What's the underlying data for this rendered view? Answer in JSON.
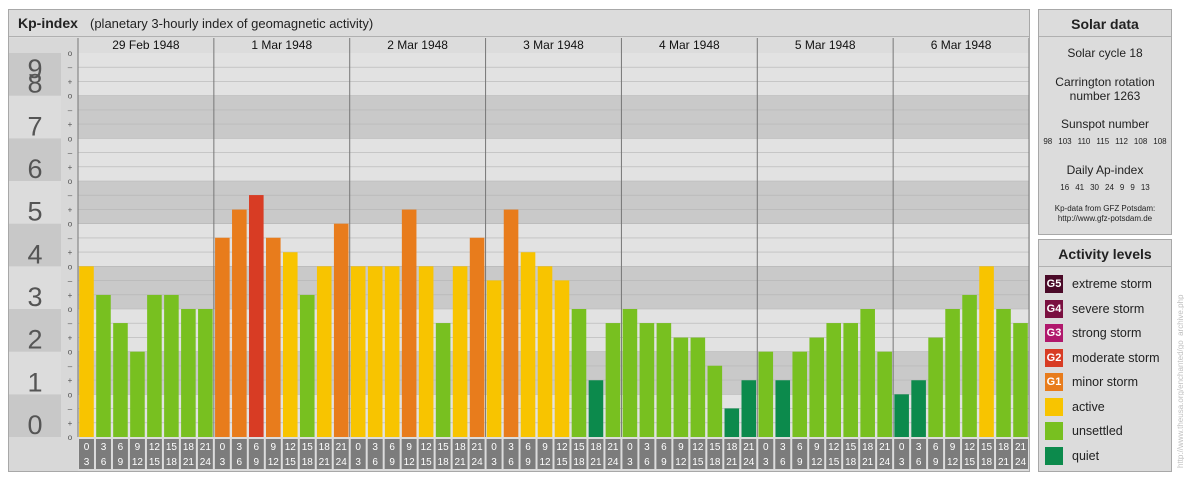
{
  "header": {
    "title": "Kp-index",
    "subtitle": "(planetary 3-hourly index of geomagnetic activity)"
  },
  "chart_data": {
    "type": "bar",
    "ylim": [
      0,
      9
    ],
    "y_ticks": [
      "0",
      "1",
      "2",
      "3",
      "4",
      "5",
      "6",
      "7",
      "8",
      "9"
    ],
    "y_subticks": [
      "o",
      "+",
      "–",
      "o",
      "+",
      "–",
      "o",
      "+",
      "–",
      "o",
      "+",
      "–",
      "o",
      "+",
      "–",
      "o",
      "+",
      "–",
      "o",
      "+",
      "–",
      "o",
      "+",
      "–",
      "o",
      "+",
      "–",
      "o"
    ],
    "days": [
      "29 Feb 1948",
      "1 Mar 1948",
      "2 Mar 1948",
      "3 Mar 1948",
      "4 Mar 1948",
      "5 Mar 1948",
      "6 Mar 1948"
    ],
    "time_intervals": [
      [
        "0",
        "3"
      ],
      [
        "3",
        "6"
      ],
      [
        "6",
        "9"
      ],
      [
        "9",
        "12"
      ],
      [
        "12",
        "15"
      ],
      [
        "15",
        "18"
      ],
      [
        "18",
        "21"
      ],
      [
        "21",
        "24"
      ]
    ],
    "values": [
      [
        4.0,
        3.33,
        2.67,
        2.0,
        3.33,
        3.33,
        3.0,
        3.0
      ],
      [
        4.67,
        5.33,
        5.67,
        4.67,
        4.33,
        3.33,
        4.0,
        5.0
      ],
      [
        4.0,
        4.0,
        4.0,
        5.33,
        4.0,
        2.67,
        4.0,
        4.67
      ],
      [
        3.67,
        5.33,
        4.33,
        4.0,
        3.67,
        3.0,
        1.33,
        2.67
      ],
      [
        3.0,
        2.67,
        2.67,
        2.33,
        2.33,
        1.67,
        0.67,
        1.33
      ],
      [
        2.0,
        1.33,
        2.0,
        2.33,
        2.67,
        2.67,
        3.0,
        2.0
      ],
      [
        1.0,
        1.33,
        2.33,
        3.0,
        3.33,
        4.0,
        3.0,
        2.67
      ]
    ],
    "colors": {
      "quiet": "#0c8a4c",
      "unsettled": "#78c020",
      "active": "#f8c400",
      "minor_storm": "#e87c1c",
      "moderate_storm": "#d83c24"
    }
  },
  "solar_data": {
    "title": "Solar data",
    "solar_cycle": "Solar cycle 18",
    "carrington_line1": "Carrington rotation",
    "carrington_line2": "number 1263",
    "sunspot_label": "Sunspot number",
    "sunspot_values": [
      "98",
      "103",
      "110",
      "115",
      "112",
      "108",
      "108"
    ],
    "ap_label": "Daily Ap-index",
    "ap_values": [
      "16",
      "41",
      "30",
      "24",
      "9",
      "9",
      "13"
    ],
    "source_line1": "Kp-data from GFZ Potsdam:",
    "source_line2": "http://www.gfz-potsdam.de"
  },
  "activity_levels": {
    "title": "Activity levels",
    "items": [
      {
        "code": "G5",
        "label": "extreme storm",
        "color": "#4a0a28"
      },
      {
        "code": "G4",
        "label": "severe storm",
        "color": "#7a1040"
      },
      {
        "code": "G3",
        "label": "strong storm",
        "color": "#b0186c"
      },
      {
        "code": "G2",
        "label": "moderate storm",
        "color": "#d83c24"
      },
      {
        "code": "G1",
        "label": "minor storm",
        "color": "#e87c1c"
      },
      {
        "code": "",
        "label": "active",
        "color": "#f8c400"
      },
      {
        "code": "",
        "label": "unsettled",
        "color": "#78c020"
      },
      {
        "code": "",
        "label": "quiet",
        "color": "#0c8a4c"
      }
    ]
  },
  "watermark": "http://www.theusa.org/enchanted/go_archive.php"
}
